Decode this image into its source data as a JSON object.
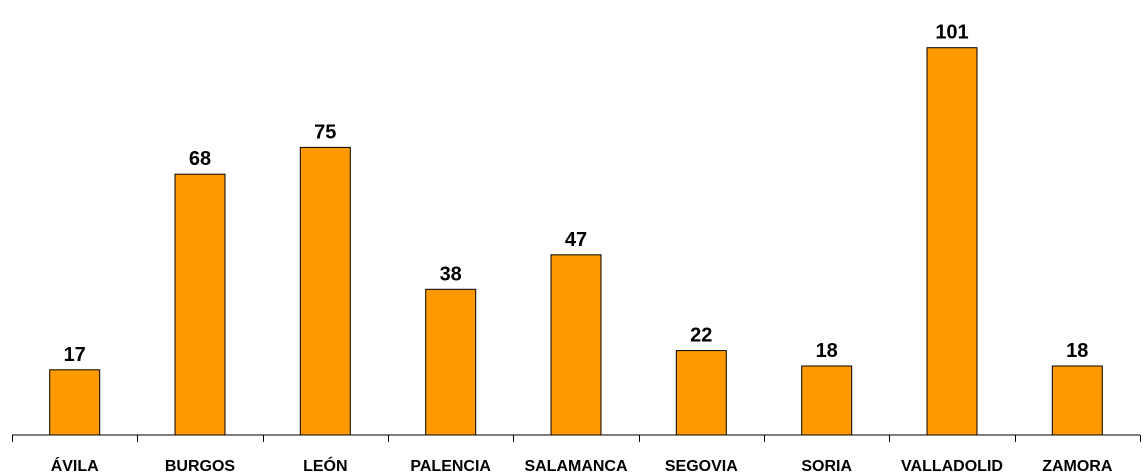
{
  "chart_data": {
    "type": "bar",
    "categories": [
      "ÁVILA",
      "BURGOS",
      "LEÓN",
      "PALENCIA",
      "SALAMANCA",
      "SEGOVIA",
      "SORIA",
      "VALLADOLID",
      "ZAMORA"
    ],
    "values": [
      17,
      68,
      75,
      38,
      47,
      22,
      18,
      101,
      18
    ],
    "data_labels": [
      "17",
      "68",
      "75",
      "38",
      "47",
      "22",
      "18",
      "101",
      "18"
    ],
    "title": "",
    "xlabel": "",
    "ylabel": "",
    "ylim": [
      0,
      110
    ],
    "grid": false,
    "legend": "none",
    "bar_color": "#FF9900",
    "bar_border_color": "#000000"
  }
}
